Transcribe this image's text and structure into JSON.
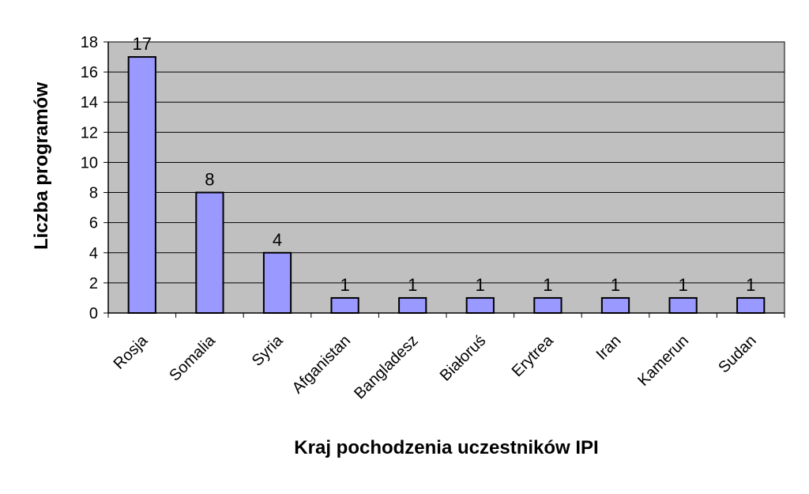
{
  "chart_data": {
    "type": "bar",
    "categories": [
      "Rosja",
      "Somalia",
      "Syria",
      "Afganistan",
      "Bangladesz",
      "Białoruś",
      "Erytrea",
      "Iran",
      "Kamerun",
      "Sudan"
    ],
    "values": [
      17,
      8,
      4,
      1,
      1,
      1,
      1,
      1,
      1,
      1
    ],
    "data_labels": [
      "17",
      "8",
      "4",
      "1",
      "1",
      "1",
      "1",
      "1",
      "1",
      "1"
    ],
    "title": "",
    "xlabel": "Kraj pochodzenia uczestników IPI",
    "ylabel": "Liczba programów",
    "ylim": [
      0,
      18
    ],
    "yticks": [
      "0",
      "2",
      "4",
      "6",
      "8",
      "10",
      "12",
      "14",
      "16",
      "18"
    ],
    "grid": true,
    "legend": "none",
    "colors": {
      "bar_fill": "#9999ff",
      "bar_stroke": "#000000",
      "plot_background": "#c0c0c0",
      "grid": "#000000"
    }
  }
}
